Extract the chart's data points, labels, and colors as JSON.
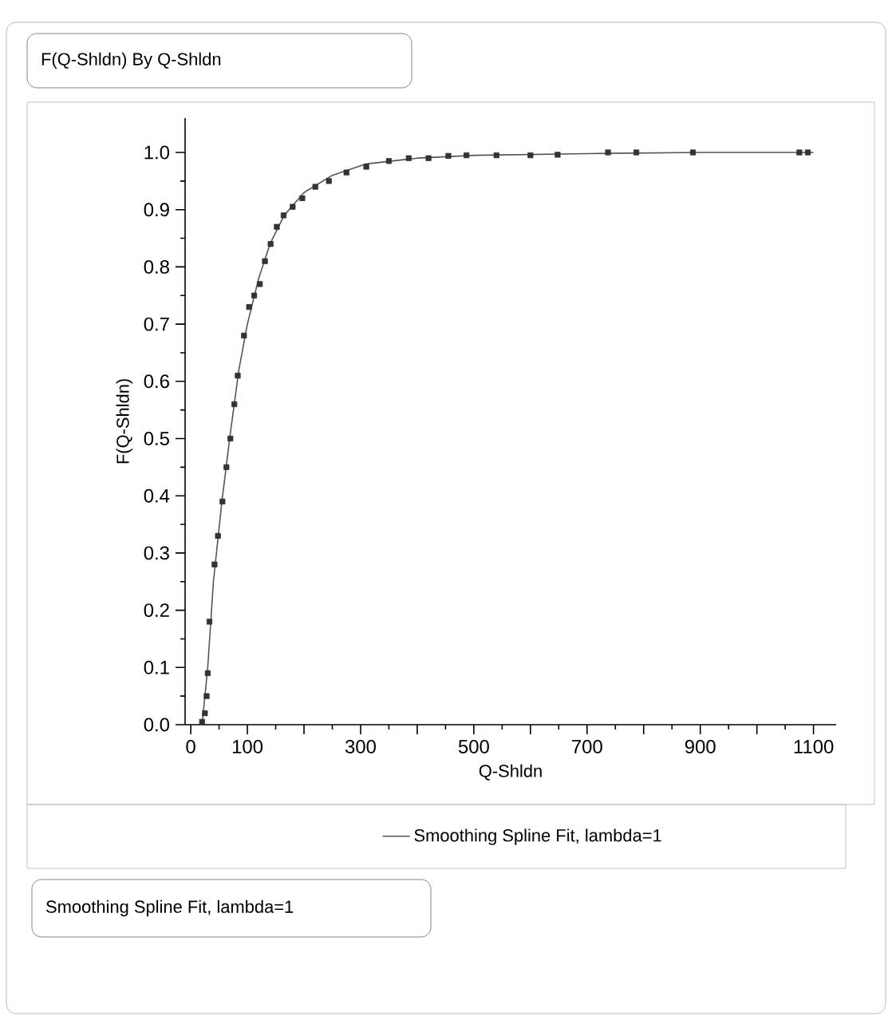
{
  "chart_data": {
    "type": "scatter",
    "title": "F(Q-Shldn) By Q-Shldn",
    "xlabel": "Q-Shldn",
    "ylabel": "F(Q-Shldn)",
    "xlim": [
      -10,
      1140
    ],
    "ylim": [
      0,
      1.06
    ],
    "xticks": [
      0,
      100,
      {
        "value": 200,
        "label": null
      },
      300,
      {
        "value": 400,
        "label": null
      },
      500,
      {
        "value": 600,
        "label": null
      },
      700,
      {
        "value": 800,
        "label": null
      },
      900,
      {
        "value": 1000,
        "label": null
      },
      1100
    ],
    "yticks": [
      {
        "value": 0,
        "label": "0.0"
      },
      {
        "value": 0.1,
        "label": "0.1"
      },
      {
        "value": 0.2,
        "label": "0.2"
      },
      {
        "value": 0.3,
        "label": "0.3"
      },
      {
        "value": 0.4,
        "label": "0.4"
      },
      {
        "value": 0.5,
        "label": "0.5"
      },
      {
        "value": 0.6,
        "label": "0.6"
      },
      {
        "value": 0.7,
        "label": "0.7"
      },
      {
        "value": 0.8,
        "label": "0.8"
      },
      {
        "value": 0.9,
        "label": "0.9"
      },
      {
        "value": 1,
        "label": "1.0"
      }
    ],
    "marker": "square",
    "legend": "bottom",
    "grid": false,
    "series": [
      {
        "color": "#333333",
        "x": [
          20,
          25,
          28,
          30,
          33,
          42,
          48,
          56,
          63,
          70,
          77,
          83,
          94,
          103,
          112,
          122,
          131,
          141,
          152,
          164,
          180,
          197,
          220,
          244,
          275,
          310,
          350,
          385,
          420,
          455,
          487,
          540,
          600,
          648,
          737,
          787,
          887,
          1075,
          1090
        ],
        "values": [
          0.005,
          0.02,
          0.05,
          0.09,
          0.18,
          0.28,
          0.33,
          0.39,
          0.45,
          0.5,
          0.56,
          0.61,
          0.68,
          0.73,
          0.75,
          0.77,
          0.81,
          0.84,
          0.87,
          0.89,
          0.905,
          0.92,
          0.94,
          0.95,
          0.965,
          0.975,
          0.985,
          0.99,
          0.99,
          0.994,
          0.995,
          0.995,
          0.995,
          0.996,
          1.0,
          1.0,
          1.0,
          1.0,
          1.0
        ]
      },
      {
        "type": "line",
        "name": "Smoothing Spline Fit, lambda=1",
        "color": "#555555",
        "marker": "none",
        "x": [
          20,
          30,
          40,
          55,
          70,
          85,
          100,
          120,
          140,
          165,
          200,
          250,
          310,
          400,
          500,
          700,
          900,
          1100
        ],
        "values": [
          0,
          0.1,
          0.25,
          0.39,
          0.51,
          0.62,
          0.7,
          0.78,
          0.84,
          0.89,
          0.93,
          0.96,
          0.98,
          0.99,
          0.995,
          0.998,
          1.0,
          1.0
        ]
      }
    ],
    "annotations": [
      "Smoothing Spline Fit, lambda=1"
    ]
  }
}
